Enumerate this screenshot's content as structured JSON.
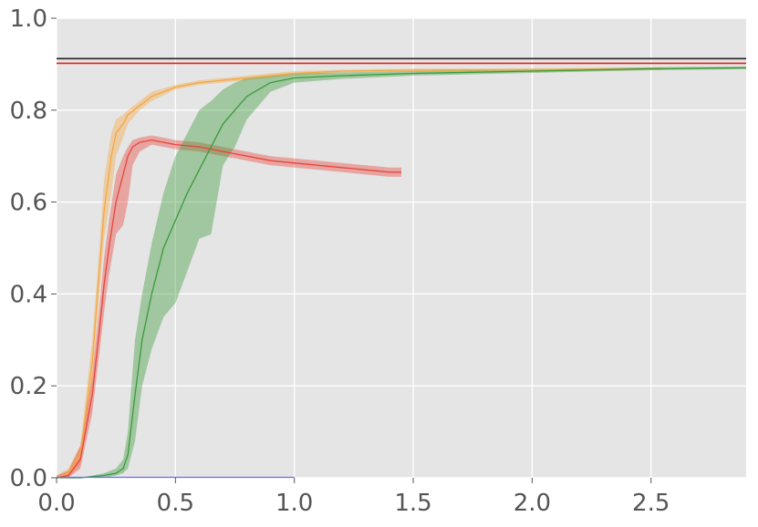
{
  "chart_data": {
    "type": "line",
    "title": "",
    "xlabel": "",
    "ylabel": "",
    "xlim": [
      0,
      2.9
    ],
    "ylim": [
      0,
      1.0
    ],
    "grid": true,
    "background": "#e5e5e5",
    "x_ticks": [
      0.0,
      0.5,
      1.0,
      1.5,
      2.0,
      2.5
    ],
    "x_tick_labels": [
      "0.0",
      "0.5",
      "1.0",
      "1.5",
      "2.0",
      "2.5"
    ],
    "y_ticks": [
      0.0,
      0.2,
      0.4,
      0.6,
      0.8,
      1.0
    ],
    "y_tick_labels": [
      "0.0",
      "0.2",
      "0.4",
      "0.6",
      "0.8",
      "1.0"
    ],
    "reference_lines": [
      {
        "y": 0.912,
        "color": "#222222"
      },
      {
        "y": 0.902,
        "color": "#e8201a"
      }
    ],
    "series": [
      {
        "color": "#f5a742",
        "x": [
          0.0,
          0.05,
          0.1,
          0.15,
          0.18,
          0.2,
          0.23,
          0.25,
          0.28,
          0.3,
          0.35,
          0.4,
          0.5,
          0.6,
          0.7,
          0.8,
          0.9,
          1.0,
          1.2,
          1.5,
          2.0,
          2.5,
          2.55
        ],
        "y": [
          0.0,
          0.01,
          0.05,
          0.25,
          0.45,
          0.58,
          0.7,
          0.75,
          0.77,
          0.79,
          0.81,
          0.83,
          0.85,
          0.86,
          0.865,
          0.87,
          0.875,
          0.88,
          0.885,
          0.887,
          0.888,
          0.89,
          0.89
        ],
        "upper": [
          0.005,
          0.02,
          0.07,
          0.3,
          0.5,
          0.65,
          0.75,
          0.78,
          0.79,
          0.8,
          0.82,
          0.84,
          0.855,
          0.865,
          0.87,
          0.875,
          0.88,
          0.885,
          0.888,
          0.89,
          0.891,
          0.893,
          0.893
        ],
        "lower": [
          0.0,
          0.0,
          0.03,
          0.2,
          0.4,
          0.52,
          0.62,
          0.7,
          0.74,
          0.77,
          0.8,
          0.82,
          0.845,
          0.855,
          0.86,
          0.865,
          0.87,
          0.875,
          0.882,
          0.884,
          0.885,
          0.887,
          0.887
        ]
      },
      {
        "color": "#e8453c",
        "x": [
          0.0,
          0.05,
          0.1,
          0.15,
          0.18,
          0.2,
          0.22,
          0.25,
          0.28,
          0.3,
          0.32,
          0.35,
          0.4,
          0.45,
          0.5,
          0.6,
          0.7,
          0.8,
          0.9,
          1.0,
          1.1,
          1.2,
          1.3,
          1.4,
          1.45
        ],
        "y": [
          0.0,
          0.005,
          0.04,
          0.18,
          0.32,
          0.42,
          0.5,
          0.6,
          0.66,
          0.7,
          0.72,
          0.73,
          0.735,
          0.73,
          0.725,
          0.72,
          0.71,
          0.7,
          0.69,
          0.685,
          0.68,
          0.675,
          0.67,
          0.665,
          0.665
        ],
        "upper": [
          0.005,
          0.015,
          0.07,
          0.22,
          0.37,
          0.48,
          0.56,
          0.66,
          0.7,
          0.72,
          0.735,
          0.74,
          0.745,
          0.74,
          0.735,
          0.73,
          0.72,
          0.71,
          0.7,
          0.695,
          0.69,
          0.685,
          0.68,
          0.675,
          0.675
        ],
        "lower": [
          0.0,
          0.0,
          0.02,
          0.14,
          0.27,
          0.36,
          0.44,
          0.53,
          0.55,
          0.6,
          0.68,
          0.71,
          0.725,
          0.72,
          0.715,
          0.71,
          0.7,
          0.69,
          0.68,
          0.675,
          0.67,
          0.665,
          0.66,
          0.655,
          0.655
        ]
      },
      {
        "color": "#3a9a3a",
        "x": [
          0.0,
          0.1,
          0.2,
          0.25,
          0.28,
          0.3,
          0.33,
          0.36,
          0.4,
          0.45,
          0.5,
          0.55,
          0.6,
          0.65,
          0.7,
          0.75,
          0.8,
          0.9,
          1.0,
          1.2,
          1.5,
          2.0,
          2.5,
          2.9
        ],
        "y": [
          0.0,
          0.0,
          0.005,
          0.01,
          0.02,
          0.05,
          0.18,
          0.3,
          0.4,
          0.5,
          0.56,
          0.62,
          0.67,
          0.72,
          0.77,
          0.8,
          0.83,
          0.86,
          0.87,
          0.875,
          0.88,
          0.885,
          0.89,
          0.892
        ],
        "upper": [
          0.0,
          0.0,
          0.01,
          0.02,
          0.04,
          0.1,
          0.3,
          0.4,
          0.51,
          0.62,
          0.7,
          0.75,
          0.8,
          0.82,
          0.845,
          0.86,
          0.87,
          0.875,
          0.88,
          0.882,
          0.885,
          0.889,
          0.893,
          0.895
        ],
        "lower": [
          0.0,
          0.0,
          0.0,
          0.005,
          0.01,
          0.02,
          0.08,
          0.2,
          0.28,
          0.35,
          0.38,
          0.45,
          0.52,
          0.53,
          0.68,
          0.72,
          0.78,
          0.84,
          0.86,
          0.868,
          0.875,
          0.881,
          0.887,
          0.889
        ]
      },
      {
        "color": "#6b6bf5",
        "x": [
          0.0,
          1.0
        ],
        "y": [
          0.001,
          0.001
        ]
      }
    ]
  }
}
